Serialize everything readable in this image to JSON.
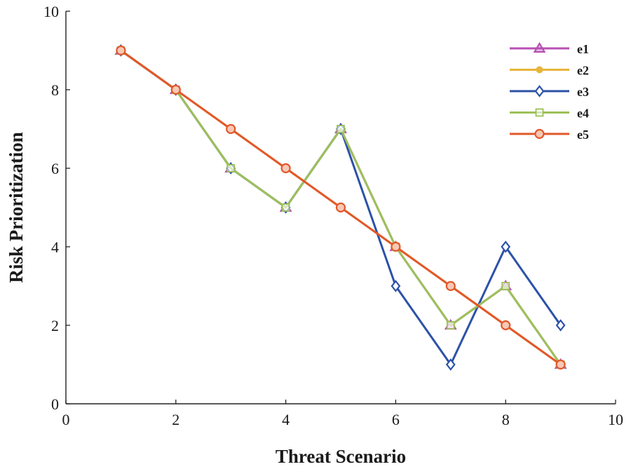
{
  "chart_data": {
    "type": "line",
    "xlabel": "Threat Scenario",
    "ylabel": "Risk Prioritization",
    "xlim": [
      0,
      10
    ],
    "ylim": [
      0,
      10
    ],
    "xticks": [
      "0",
      "2",
      "4",
      "6",
      "8",
      "10"
    ],
    "yticks": [
      "0",
      "2",
      "4",
      "6",
      "8",
      "10"
    ],
    "grid": false,
    "legend_position": "top-right",
    "x": [
      1,
      2,
      3,
      4,
      5,
      6,
      7,
      8,
      9
    ],
    "series": [
      {
        "name": "e1",
        "marker": "triangle",
        "color": "#b64fb4",
        "values": [
          9,
          8,
          6,
          5,
          7,
          4,
          2,
          3,
          1
        ]
      },
      {
        "name": "e2",
        "marker": "filled-circle",
        "color": "#e8b43a",
        "values": [
          9,
          8,
          7,
          6,
          5,
          4,
          3,
          2,
          1
        ]
      },
      {
        "name": "e3",
        "marker": "diamond",
        "color": "#2c52a8",
        "values": [
          9,
          8,
          6,
          5,
          7,
          3,
          1,
          4,
          2
        ]
      },
      {
        "name": "e4",
        "marker": "square",
        "color": "#9cc158",
        "values": [
          9,
          8,
          6,
          5,
          7,
          4,
          2,
          3,
          1
        ]
      },
      {
        "name": "e5",
        "marker": "circle",
        "color": "#e2582a",
        "values": [
          9,
          8,
          7,
          6,
          5,
          4,
          3,
          2,
          1
        ]
      }
    ]
  }
}
